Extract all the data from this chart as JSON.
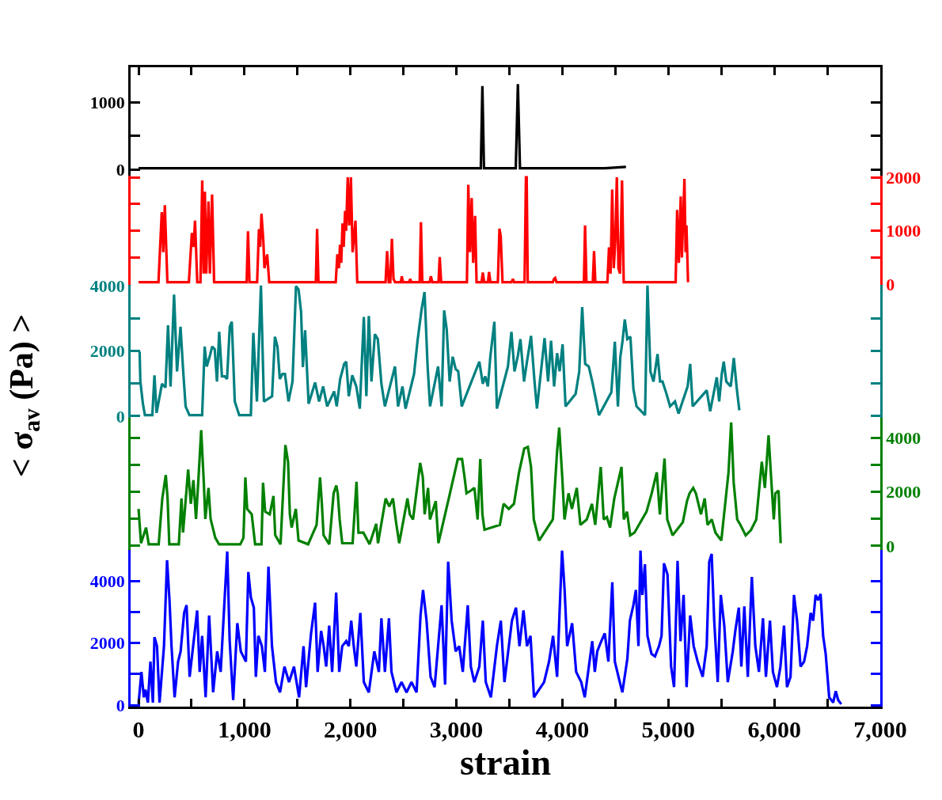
{
  "chart_data": [
    {
      "type": "line",
      "xlim": [
        -75,
        7000
      ],
      "ylim": [
        -90,
        1520
      ],
      "yticks": [
        0,
        {
          "value": 500,
          "label": null
        },
        1000
      ],
      "tick_labels": "y",
      "xticks": [
        {
          "value": 0,
          "label": null
        },
        {
          "value": 500,
          "label": null
        },
        {
          "value": 1000,
          "label": null
        },
        {
          "value": 1500,
          "label": null
        },
        {
          "value": 2000,
          "label": null
        },
        {
          "value": 2500,
          "label": null
        },
        {
          "value": 3000,
          "label": null
        },
        {
          "value": 3500,
          "label": null
        },
        {
          "value": 4000,
          "label": null
        },
        {
          "value": 4500,
          "label": null
        },
        {
          "value": 5000,
          "label": null
        },
        {
          "value": 5500,
          "label": null
        },
        {
          "value": 6000,
          "label": null
        },
        {
          "value": 6500,
          "label": null
        },
        {
          "value": 7000,
          "label": null
        }
      ],
      "series": [
        {
          "color": "#000000",
          "x": [
            0,
            200,
            500,
            800,
            1100,
            1400,
            1700,
            2000,
            2300,
            2600,
            2900,
            3100,
            3230,
            3245,
            3260,
            3400,
            3560,
            3580,
            3600,
            3800,
            4100,
            4400,
            4600
          ],
          "values": [
            20,
            20,
            20,
            20,
            20,
            20,
            20,
            20,
            20,
            20,
            20,
            20,
            20,
            1240,
            20,
            20,
            20,
            1270,
            20,
            20,
            20,
            20,
            40
          ]
        }
      ]
    },
    {
      "type": "line",
      "xlim": [
        -75,
        7000
      ],
      "y2lim": [
        -10,
        2030
      ],
      "y2ticks": [
        0,
        {
          "value": 500,
          "label": null
        },
        1000,
        {
          "value": 1500,
          "label": null
        },
        2000
      ],
      "tick_labels": "y",
      "series": [
        {
          "color": "#ff0000",
          "axis": "y2",
          "x": [
            0,
            188,
            219,
            233,
            248,
            272,
            475,
            503,
            520,
            533,
            554,
            584,
            601,
            614,
            626,
            639,
            660,
            673,
            694,
            713,
            1020,
            1033,
            1047,
            1119,
            1136,
            1148,
            1160,
            1178,
            1188,
            1214,
            1233,
            1673,
            1685,
            1698,
            1861,
            1876,
            1891,
            1901,
            1913,
            1925,
            1936,
            1949,
            1959,
            1974,
            1988,
            2004,
            2020,
            2047,
            2064,
            2331,
            2346,
            2361,
            2376,
            2391,
            2406,
            2421,
            2475,
            2484,
            2495,
            2554,
            2564,
            2574,
            2653,
            2665,
            2678,
            2747,
            2759,
            2772,
            2831,
            2842,
            2856,
            3099,
            3112,
            3128,
            3144,
            3158,
            3176,
            3190,
            3237,
            3249,
            3262,
            3297,
            3308,
            3321,
            3391,
            3406,
            3418,
            3435,
            3519,
            3533,
            3544,
            3643,
            3656,
            3663,
            3673,
            3910,
            3920,
            3932,
            3945,
            4203,
            4214,
            4227,
            4287,
            4299,
            4311,
            4425,
            4440,
            4455,
            4470,
            4485,
            4499,
            4514,
            4529,
            4544,
            4563,
            4579,
            5069,
            5083,
            5099,
            5117,
            5128,
            5152,
            5163,
            5171,
            5186
          ],
          "values": [
            40,
            40,
            1350,
            600,
            1480,
            40,
            40,
            960,
            700,
            1190,
            40,
            40,
            1940,
            200,
            1730,
            200,
            1550,
            200,
            1680,
            40,
            40,
            990,
            40,
            40,
            1030,
            700,
            1320,
            800,
            300,
            560,
            40,
            40,
            1035,
            40,
            40,
            560,
            300,
            740,
            400,
            1140,
            700,
            1370,
            1000,
            2000,
            1100,
            2000,
            600,
            1190,
            40,
            40,
            620,
            40,
            40,
            850,
            100,
            40,
            40,
            150,
            40,
            40,
            100,
            40,
            40,
            1160,
            40,
            40,
            150,
            40,
            40,
            510,
            40,
            40,
            1860,
            600,
            1610,
            400,
            1280,
            40,
            40,
            220,
            40,
            40,
            230,
            40,
            40,
            1040,
            900,
            40,
            40,
            100,
            40,
            40,
            2000,
            2000,
            40,
            40,
            100,
            120,
            40,
            40,
            1100,
            40,
            40,
            620,
            40,
            40,
            690,
            200,
            1770,
            300,
            800,
            2000,
            300,
            200,
            1940,
            40,
            40,
            1390,
            400,
            1640,
            500,
            1970,
            600,
            1100,
            40
          ]
        }
      ]
    },
    {
      "type": "line",
      "xlim": [
        -75,
        7000
      ],
      "ylim": [
        -50,
        4020
      ],
      "yticks": [
        0,
        {
          "value": 1000,
          "label": null
        },
        2000,
        {
          "value": 3000,
          "label": null
        },
        4000
      ],
      "tick_labels": "y",
      "ylabel": "< σ$_{av}$ (Pa) >",
      "series": [
        {
          "color": "#008080",
          "x": [
            10,
            17,
            41,
            60,
            130,
            150,
            170,
            221,
            254,
            278,
            302,
            335,
            363,
            396,
            420,
            444,
            480,
            600,
            624,
            643,
            671,
            695,
            719,
            740,
            761,
            787,
            813,
            835,
            861,
            880,
            908,
            950,
            1060,
            1083,
            1117,
            1155,
            1183,
            1260,
            1287,
            1311,
            1333,
            1358,
            1382,
            1415,
            1453,
            1486,
            1510,
            1534,
            1551,
            1572,
            1605,
            1666,
            1704,
            1742,
            1780,
            1846,
            1870,
            1903,
            1941,
            1960,
            1984,
            2017,
            2055,
            2088,
            2126,
            2150,
            2173,
            2198,
            2230,
            2258,
            2292,
            2325,
            2420,
            2449,
            2491,
            2520,
            2600,
            2633,
            2671,
            2699,
            2728,
            2751,
            2827,
            2860,
            2884,
            2908,
            2936,
            2965,
            2993,
            3017,
            3050,
            3216,
            3249,
            3272,
            3297,
            3320,
            3358,
            3382,
            3486,
            3519,
            3548,
            3580,
            3604,
            3638,
            3666,
            3704,
            3737,
            3760,
            3832,
            3865,
            3893,
            3922,
            3950,
            3974,
            4002,
            4030,
            4125,
            4159,
            4187,
            4215,
            4249,
            4282,
            4320,
            4345,
            4462,
            4495,
            4524,
            4547,
            4567,
            4589,
            4613,
            4642,
            4670,
            4700,
            4780,
            4803,
            4831,
            4860,
            4898,
            4922,
            4945,
            4983,
            5016,
            5063,
            5096,
            5182,
            5206,
            5230,
            5362,
            5395,
            5457,
            5480,
            5504,
            5523,
            5547,
            5589,
            5618,
            5646,
            5670
          ],
          "values": [
            1980,
            1060,
            380,
            30,
            30,
            1250,
            100,
            990,
            880,
            2780,
            910,
            3720,
            1370,
            2740,
            1440,
            300,
            30,
            30,
            2130,
            1520,
            1820,
            2130,
            2050,
            1060,
            2580,
            1220,
            1220,
            1140,
            2740,
            2890,
            450,
            30,
            30,
            2550,
            450,
            4000,
            450,
            610,
            2430,
            2130,
            1140,
            1290,
            1290,
            450,
            1060,
            3980,
            3880,
            3190,
            1500,
            2630,
            380,
            1030,
            450,
            910,
            300,
            760,
            300,
            1140,
            1600,
            1670,
            610,
            1250,
            910,
            230,
            3040,
            610,
            3070,
            1060,
            2510,
            2360,
            990,
            300,
            1520,
            300,
            910,
            230,
            1290,
            2310,
            3270,
            3800,
            1520,
            300,
            1520,
            300,
            3240,
            2660,
            1060,
            1820,
            1440,
            1370,
            300,
            1670,
            990,
            1220,
            910,
            1820,
            2890,
            230,
            1520,
            2580,
            1370,
            1850,
            2360,
            1060,
            1670,
            2460,
            1060,
            230,
            2390,
            1060,
            2310,
            910,
            1930,
            1370,
            2200,
            300,
            680,
            1370,
            3340,
            1600,
            1520,
            1060,
            450,
            30,
            730,
            2280,
            300,
            1820,
            2280,
            2960,
            2360,
            2430,
            840,
            300,
            30,
            4000,
            1370,
            1060,
            1900,
            1060,
            1060,
            680,
            300,
            450,
            80,
            910,
            1600,
            300,
            790,
            150,
            1190,
            450,
            1290,
            1670,
            1060,
            910,
            1780,
            840,
            180
          ]
        }
      ]
    },
    {
      "type": "line",
      "xlim": [
        -75,
        7000
      ],
      "y2lim": [
        -150,
        4750
      ],
      "y2ticks": [
        0,
        {
          "value": 1000,
          "label": null
        },
        2000,
        {
          "value": 3000,
          "label": null
        },
        4000
      ],
      "tick_labels": "y",
      "series": [
        {
          "color": "#008000",
          "axis": "y2",
          "x": [
            0,
            23,
            71,
            96,
            190,
            224,
            257,
            274,
            290,
            380,
            405,
            420,
            468,
            493,
            518,
            542,
            566,
            591,
            616,
            630,
            660,
            680,
            724,
            760,
            960,
            990,
            1008,
            1025,
            1068,
            1100,
            1160,
            1175,
            1195,
            1238,
            1273,
            1290,
            1340,
            1386,
            1411,
            1428,
            1445,
            1484,
            1510,
            1600,
            1680,
            1713,
            1730,
            1746,
            1800,
            1841,
            1866,
            1880,
            1898,
            1922,
            2020,
            2057,
            2075,
            2122,
            2180,
            2243,
            2260,
            2332,
            2366,
            2401,
            2430,
            2460,
            2538,
            2560,
            2590,
            2658,
            2683,
            2700,
            2732,
            2750,
            2805,
            2830,
            2939,
            3013,
            3053,
            3077,
            3095,
            3136,
            3170,
            3200,
            3225,
            3245,
            3265,
            3410,
            3445,
            3494,
            3543,
            3591,
            3640,
            3674,
            3704,
            3730,
            3780,
            3910,
            3950,
            3970,
            3999,
            4020,
            4058,
            4090,
            4136,
            4170,
            4230,
            4279,
            4310,
            4362,
            4390,
            4420,
            4450,
            4490,
            4558,
            4580,
            4610,
            4640,
            4680,
            4794,
            4843,
            4891,
            4920,
            4964,
            4990,
            5040,
            5137,
            5176,
            5200,
            5235,
            5260,
            5308,
            5343,
            5370,
            5410,
            5445,
            5500,
            5568,
            5593,
            5617,
            5650,
            5680,
            5730,
            5780,
            5830,
            5882,
            5911,
            5946,
            5970,
            5995,
            6010,
            6040,
            6060
          ],
          "values": [
            1370,
            100,
            680,
            60,
            60,
            1760,
            2630,
            1760,
            60,
            60,
            1760,
            500,
            2830,
            1560,
            2440,
            1000,
            2540,
            4290,
            2340,
            1000,
            2150,
            1000,
            300,
            60,
            60,
            300,
            2540,
            1370,
            1170,
            60,
            60,
            2340,
            1270,
            1170,
            1850,
            400,
            60,
            3740,
            3120,
            1170,
            680,
            1370,
            200,
            60,
            780,
            2540,
            1560,
            400,
            60,
            1950,
            2240,
            1950,
            980,
            100,
            100,
            2380,
            490,
            490,
            60,
            820,
            100,
            1760,
            1460,
            1760,
            880,
            100,
            1760,
            1170,
            980,
            3080,
            2540,
            1170,
            2150,
            980,
            1660,
            100,
            1950,
            3220,
            3220,
            2540,
            1950,
            2050,
            2150,
            980,
            3220,
            1170,
            600,
            780,
            1560,
            1370,
            1560,
            2730,
            3610,
            3670,
            2930,
            980,
            200,
            980,
            3510,
            4390,
            2540,
            980,
            1950,
            1370,
            2150,
            780,
            980,
            1560,
            780,
            2930,
            980,
            1070,
            680,
            1760,
            2930,
            980,
            1270,
            390,
            490,
            1270,
            1950,
            2730,
            1170,
            3240,
            980,
            390,
            880,
            1660,
            1950,
            2150,
            1950,
            1170,
            1760,
            780,
            980,
            490,
            200,
            2730,
            4580,
            2340,
            980,
            780,
            390,
            590,
            980,
            3120,
            2150,
            4100,
            2540,
            980,
            1950,
            2050,
            100
          ]
        }
      ]
    },
    {
      "type": "line",
      "xlim": [
        -75,
        7000
      ],
      "ylim": [
        -50,
        5000
      ],
      "yticks": [
        0,
        {
          "value": 1000,
          "label": null
        },
        2000,
        {
          "value": 3000,
          "label": null
        },
        4000
      ],
      "xlabel": "strain",
      "xticks": [
        0,
        {
          "value": 500,
          "label": null
        },
        {
          "value": 1000,
          "label": "1,000"
        },
        {
          "value": 1500,
          "label": null
        },
        {
          "value": 2000,
          "label": "2,000"
        },
        {
          "value": 2500,
          "label": null
        },
        {
          "value": 3000,
          "label": "3,000"
        },
        {
          "value": 3500,
          "label": null
        },
        {
          "value": 4000,
          "label": "4,000"
        },
        {
          "value": 4500,
          "label": null
        },
        {
          "value": 5000,
          "label": "5,000"
        },
        {
          "value": 5500,
          "label": null
        },
        {
          "value": 6000,
          "label": "6,000"
        },
        {
          "value": 6500,
          "label": null
        },
        {
          "value": 7000,
          "label": "7,000"
        }
      ],
      "series": [
        {
          "color": "#0000ff",
          "x": [
            0,
            27,
            50,
            65,
            88,
            112,
            135,
            150,
            174,
            198,
            240,
            269,
            292,
            311,
            340,
            373,
            397,
            430,
            453,
            482,
            515,
            553,
            577,
            600,
            633,
            666,
            704,
            742,
            775,
            813,
            837,
            860,
            893,
            932,
            965,
            1013,
            1036,
            1060,
            1088,
            1107,
            1131,
            1164,
            1192,
            1226,
            1259,
            1297,
            1335,
            1377,
            1420,
            1467,
            1515,
            1557,
            1581,
            1628,
            1666,
            1690,
            1723,
            1747,
            1771,
            1799,
            1827,
            1865,
            1894,
            1922,
            1960,
            1984,
            2007,
            2031,
            2055,
            2093,
            2126,
            2173,
            2225,
            2268,
            2292,
            2325,
            2363,
            2387,
            2434,
            2482,
            2529,
            2576,
            2624,
            2661,
            2685,
            2718,
            2756,
            2794,
            2860,
            2893,
            2922,
            2955,
            2993,
            3026,
            3060,
            3107,
            3136,
            3169,
            3216,
            3249,
            3277,
            3325,
            3382,
            3419,
            3453,
            3524,
            3562,
            3595,
            3633,
            3666,
            3699,
            3732,
            3827,
            3874,
            3912,
            3950,
            3974,
            3997,
            4021,
            4045,
            4092,
            4130,
            4178,
            4211,
            4282,
            4306,
            4329,
            4367,
            4400,
            4434,
            4471,
            4495,
            4542,
            4566,
            4613,
            4637,
            4670,
            4694,
            4718,
            4737,
            4755,
            4779,
            4803,
            4841,
            4874,
            4912,
            4936,
            4959,
            4992,
            5026,
            5054,
            5087,
            5115,
            5144,
            5172,
            5206,
            5239,
            5277,
            5324,
            5362,
            5386,
            5409,
            5433,
            5466,
            5495,
            5528,
            5561,
            5608,
            5632,
            5665,
            5689,
            5717,
            5750,
            5788,
            5821,
            5855,
            5893,
            5921,
            5959,
            5987,
            6025,
            6058,
            6092,
            6120,
            6153,
            6186,
            6215,
            6248,
            6281,
            6310,
            6343,
            6367,
            6390,
            6414,
            6437,
            6461,
            6485,
            6518,
            6556,
            6580,
            6603,
            6632
          ],
          "values": [
            50,
            1070,
            250,
            500,
            80,
            1400,
            80,
            2190,
            1900,
            80,
            1900,
            4670,
            3380,
            1900,
            250,
            1400,
            1730,
            2970,
            3220,
            910,
            1900,
            3050,
            1070,
            2230,
            250,
            2890,
            410,
            1730,
            1070,
            3470,
            4950,
            2060,
            160,
            2640,
            1730,
            1400,
            4290,
            3470,
            3140,
            910,
            2230,
            1900,
            1070,
            4460,
            1900,
            740,
            410,
            1240,
            740,
            1240,
            250,
            1900,
            580,
            2310,
            3300,
            1070,
            2390,
            1900,
            1240,
            2560,
            1070,
            3630,
            1070,
            1900,
            2060,
            1900,
            2720,
            1900,
            1240,
            2970,
            740,
            410,
            1730,
            1070,
            2800,
            1070,
            2800,
            1070,
            410,
            740,
            410,
            740,
            410,
            2890,
            3710,
            2720,
            910,
            580,
            3220,
            660,
            4620,
            2720,
            1730,
            1900,
            1070,
            3220,
            1240,
            740,
            1240,
            2720,
            740,
            250,
            1900,
            2720,
            740,
            2720,
            3140,
            1900,
            3050,
            1900,
            2230,
            250,
            740,
            1400,
            2230,
            910,
            3050,
            4980,
            3710,
            1900,
            2640,
            1070,
            740,
            250,
            2060,
            1070,
            1730,
            2060,
            2310,
            1400,
            3960,
            1400,
            740,
            410,
            1490,
            2720,
            3220,
            3710,
            1900,
            4980,
            3550,
            4540,
            2230,
            1650,
            1570,
            1900,
            2230,
            4570,
            4210,
            1240,
            580,
            4650,
            2060,
            3550,
            580,
            2890,
            1900,
            1400,
            910,
            1900,
            4620,
            4870,
            2720,
            740,
            3550,
            2560,
            740,
            1730,
            2390,
            3140,
            1240,
            3180,
            910,
            4130,
            1900,
            1070,
            2800,
            910,
            2720,
            1070,
            580,
            1240,
            2560,
            580,
            910,
            3550,
            2720,
            1240,
            1400,
            1900,
            2970,
            2720,
            3550,
            3380,
            3580,
            2230,
            1650,
            250,
            80,
            450,
            160,
            30
          ]
        }
      ]
    }
  ]
}
